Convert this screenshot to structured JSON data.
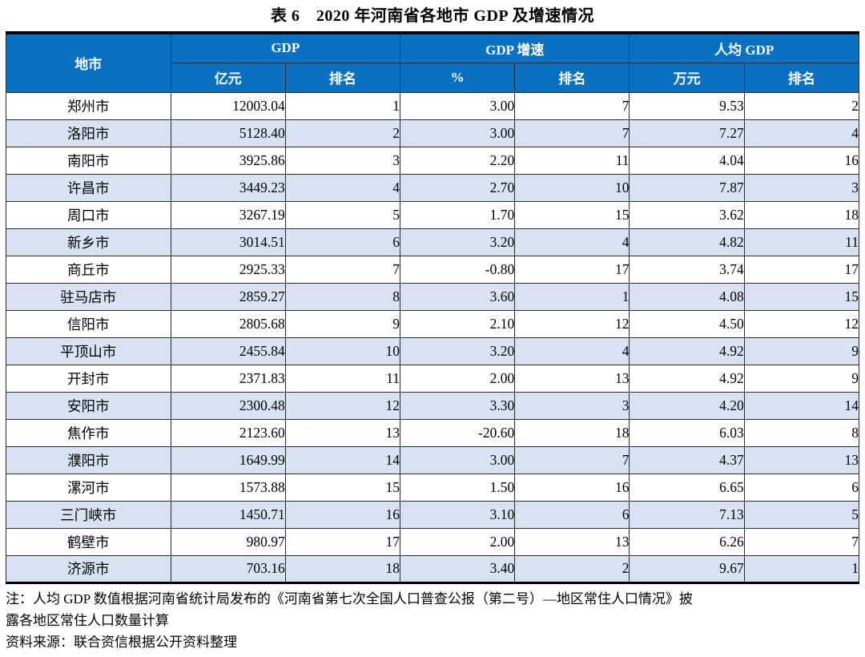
{
  "title": "表 6　2020 年河南省各地市 GDP 及增速情况",
  "colors": {
    "header_bg": "#0A70C2",
    "row_alt_bg": "#D9E2F3",
    "border_dark": "#000000"
  },
  "table": {
    "header": {
      "city": "地市",
      "groups": [
        {
          "label": "GDP",
          "subs": [
            "亿元",
            "排名"
          ]
        },
        {
          "label": "GDP 增速",
          "subs": [
            "%",
            "排名"
          ]
        },
        {
          "label": "人均 GDP",
          "subs": [
            "万元",
            "排名"
          ]
        }
      ]
    },
    "rows": [
      {
        "city": "郑州市",
        "gdp": "12003.04",
        "gdp_rank": "1",
        "growth": "3.00",
        "growth_rank": "7",
        "per_capita": "9.53",
        "per_capita_rank": "2"
      },
      {
        "city": "洛阳市",
        "gdp": "5128.40",
        "gdp_rank": "2",
        "growth": "3.00",
        "growth_rank": "7",
        "per_capita": "7.27",
        "per_capita_rank": "4"
      },
      {
        "city": "南阳市",
        "gdp": "3925.86",
        "gdp_rank": "3",
        "growth": "2.20",
        "growth_rank": "11",
        "per_capita": "4.04",
        "per_capita_rank": "16"
      },
      {
        "city": "许昌市",
        "gdp": "3449.23",
        "gdp_rank": "4",
        "growth": "2.70",
        "growth_rank": "10",
        "per_capita": "7.87",
        "per_capita_rank": "3"
      },
      {
        "city": "周口市",
        "gdp": "3267.19",
        "gdp_rank": "5",
        "growth": "1.70",
        "growth_rank": "15",
        "per_capita": "3.62",
        "per_capita_rank": "18"
      },
      {
        "city": "新乡市",
        "gdp": "3014.51",
        "gdp_rank": "6",
        "growth": "3.20",
        "growth_rank": "4",
        "per_capita": "4.82",
        "per_capita_rank": "11"
      },
      {
        "city": "商丘市",
        "gdp": "2925.33",
        "gdp_rank": "7",
        "growth": "-0.80",
        "growth_rank": "17",
        "per_capita": "3.74",
        "per_capita_rank": "17"
      },
      {
        "city": "驻马店市",
        "gdp": "2859.27",
        "gdp_rank": "8",
        "growth": "3.60",
        "growth_rank": "1",
        "per_capita": "4.08",
        "per_capita_rank": "15"
      },
      {
        "city": "信阳市",
        "gdp": "2805.68",
        "gdp_rank": "9",
        "growth": "2.10",
        "growth_rank": "12",
        "per_capita": "4.50",
        "per_capita_rank": "12"
      },
      {
        "city": "平顶山市",
        "gdp": "2455.84",
        "gdp_rank": "10",
        "growth": "3.20",
        "growth_rank": "4",
        "per_capita": "4.92",
        "per_capita_rank": "9"
      },
      {
        "city": "开封市",
        "gdp": "2371.83",
        "gdp_rank": "11",
        "growth": "2.00",
        "growth_rank": "13",
        "per_capita": "4.92",
        "per_capita_rank": "9"
      },
      {
        "city": "安阳市",
        "gdp": "2300.48",
        "gdp_rank": "12",
        "growth": "3.30",
        "growth_rank": "3",
        "per_capita": "4.20",
        "per_capita_rank": "14"
      },
      {
        "city": "焦作市",
        "gdp": "2123.60",
        "gdp_rank": "13",
        "growth": "-20.60",
        "growth_rank": "18",
        "per_capita": "6.03",
        "per_capita_rank": "8"
      },
      {
        "city": "濮阳市",
        "gdp": "1649.99",
        "gdp_rank": "14",
        "growth": "3.00",
        "growth_rank": "7",
        "per_capita": "4.37",
        "per_capita_rank": "13"
      },
      {
        "city": "漯河市",
        "gdp": "1573.88",
        "gdp_rank": "15",
        "growth": "1.50",
        "growth_rank": "16",
        "per_capita": "6.65",
        "per_capita_rank": "6"
      },
      {
        "city": "三门峡市",
        "gdp": "1450.71",
        "gdp_rank": "16",
        "growth": "3.10",
        "growth_rank": "6",
        "per_capita": "7.13",
        "per_capita_rank": "5"
      },
      {
        "city": "鹤壁市",
        "gdp": "980.97",
        "gdp_rank": "17",
        "growth": "2.00",
        "growth_rank": "13",
        "per_capita": "6.26",
        "per_capita_rank": "7"
      },
      {
        "city": "济源市",
        "gdp": "703.16",
        "gdp_rank": "18",
        "growth": "3.40",
        "growth_rank": "2",
        "per_capita": "9.67",
        "per_capita_rank": "1"
      }
    ]
  },
  "notes": [
    "注：人均 GDP 数值根据河南省统计局发布的《河南省第七次全国人口普查公报（第二号）—地区常住人口情况》披",
    "露各地区常住人口数量计算",
    "资料来源：联合资信根据公开资料整理"
  ]
}
